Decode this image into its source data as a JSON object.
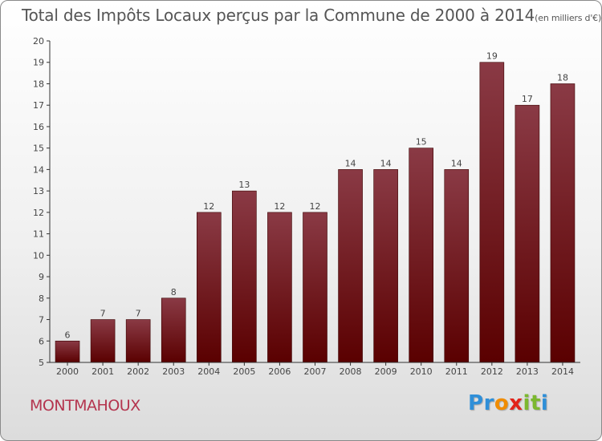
{
  "title": "Total des Impôts Locaux perçus par la Commune de 2000 à 2014",
  "title_unit": "(en milliers d'€)",
  "commune": "MONTMAHOUX",
  "logo": {
    "letters": [
      {
        "ch": "P",
        "color": "#2f8fd8"
      },
      {
        "ch": "r",
        "color": "#2f8fd8"
      },
      {
        "ch": "o",
        "color": "#f08c00"
      },
      {
        "ch": "x",
        "color": "#e2231a"
      },
      {
        "ch": "i",
        "color": "#7cb82f"
      },
      {
        "ch": "t",
        "color": "#7cb82f"
      },
      {
        "ch": "i",
        "color": "#2f8fd8"
      }
    ]
  },
  "colors": {
    "bar_top": "#8a3a45",
    "bar_bottom": "#5a0000",
    "axis": "#333333",
    "tick_text": "#444444"
  },
  "chart_data": {
    "type": "bar",
    "title": "Total des Impôts Locaux perçus par la Commune de 2000 à 2014",
    "xlabel": "",
    "ylabel": "",
    "categories": [
      "2000",
      "2001",
      "2002",
      "2003",
      "2004",
      "2005",
      "2006",
      "2007",
      "2008",
      "2009",
      "2010",
      "2011",
      "2012",
      "2013",
      "2014"
    ],
    "values": [
      6,
      7,
      7,
      8,
      12,
      13,
      12,
      12,
      14,
      14,
      15,
      14,
      19,
      17,
      18
    ],
    "ylim": [
      5,
      20
    ],
    "yticks": [
      5,
      6,
      7,
      8,
      9,
      10,
      11,
      12,
      13,
      14,
      15,
      16,
      17,
      18,
      19,
      20
    ],
    "grid": false
  }
}
